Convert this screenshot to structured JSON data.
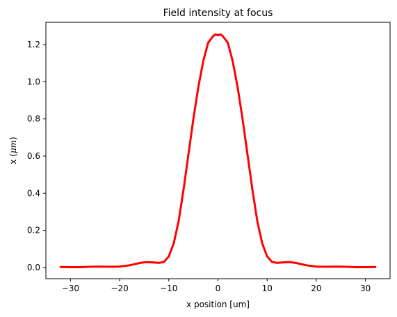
{
  "chart_data": {
    "type": "line",
    "title": "Field intensity at focus",
    "xlabel": "x position [um]",
    "ylabel_prefix": "x (",
    "ylabel_math": "μm",
    "ylabel_suffix": ")",
    "xlim": [
      -35,
      35
    ],
    "ylim": [
      -0.06,
      1.32
    ],
    "xticks": [
      -30,
      -20,
      -10,
      0,
      10,
      20,
      30
    ],
    "yticks": [
      0.0,
      0.2,
      0.4,
      0.6,
      0.8,
      1.0,
      1.2
    ],
    "xtick_labels": [
      "−30",
      "−20",
      "−10",
      "0",
      "10",
      "20",
      "30"
    ],
    "ytick_labels": [
      "0.0",
      "0.2",
      "0.4",
      "0.6",
      "0.8",
      "1.0",
      "1.2"
    ],
    "grid": false,
    "series": [
      {
        "color": "#ff0000",
        "x": [
          -32,
          -30,
          -28,
          -26,
          -24,
          -22,
          -20,
          -18,
          -16,
          -15,
          -14,
          -13,
          -12,
          -11,
          -10,
          -9,
          -8,
          -7,
          -6,
          -5,
          -4,
          -3,
          -2,
          -1,
          -0.5,
          0,
          0.5,
          1,
          2,
          3,
          4,
          5,
          6,
          7,
          8,
          9,
          10,
          11,
          12,
          13,
          14,
          15,
          16,
          18,
          20,
          22,
          24,
          26,
          28,
          30,
          32
        ],
        "y": [
          0.003,
          0.002,
          0.002,
          0.004,
          0.005,
          0.004,
          0.005,
          0.012,
          0.024,
          0.028,
          0.029,
          0.027,
          0.025,
          0.03,
          0.06,
          0.13,
          0.25,
          0.42,
          0.61,
          0.8,
          0.97,
          1.11,
          1.21,
          1.245,
          1.255,
          1.25,
          1.255,
          1.245,
          1.21,
          1.11,
          0.97,
          0.8,
          0.61,
          0.42,
          0.25,
          0.13,
          0.06,
          0.03,
          0.025,
          0.027,
          0.029,
          0.028,
          0.024,
          0.012,
          0.005,
          0.004,
          0.005,
          0.004,
          0.002,
          0.002,
          0.003
        ]
      }
    ]
  }
}
